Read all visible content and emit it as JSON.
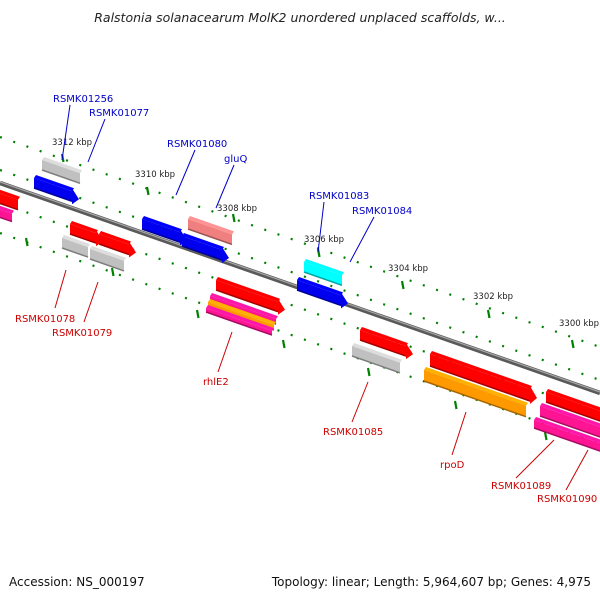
{
  "title": "Ralstonia solanacearum MolK2 unordered unplaced scaffolds, w...",
  "footer": {
    "accession": "Accession: NS_000197",
    "topology": "Topology: linear; Length: 5,964,607 bp; Genes: 4,975"
  },
  "scale_labels": [
    "3312 kbp",
    "3310 kbp",
    "3308 kbp",
    "3306 kbp",
    "3304 kbp",
    "3302 kbp",
    "3300 kbp"
  ],
  "gene_labels_top": [
    "RSMK01256",
    "RSMK01077",
    "RSMK01080",
    "gluQ",
    "RSMK01083",
    "RSMK01084"
  ],
  "gene_labels_bottom": [
    "RSMK01078",
    "RSMK01079",
    "rhlE2",
    "RSMK01085",
    "rpoD",
    "RSMK01089",
    "RSMK01090"
  ],
  "colors": {
    "backbone": "#808080",
    "blue": "#0000ee",
    "red": "#ff0000",
    "grey": "#c0c0c0",
    "salmon": "#f08080",
    "cyan": "#00ffff",
    "orange": "#ff9900",
    "magenta": "#ff1493",
    "tick": "#008000",
    "label_blue": "#0000c8",
    "label_red": "#cc0000"
  }
}
